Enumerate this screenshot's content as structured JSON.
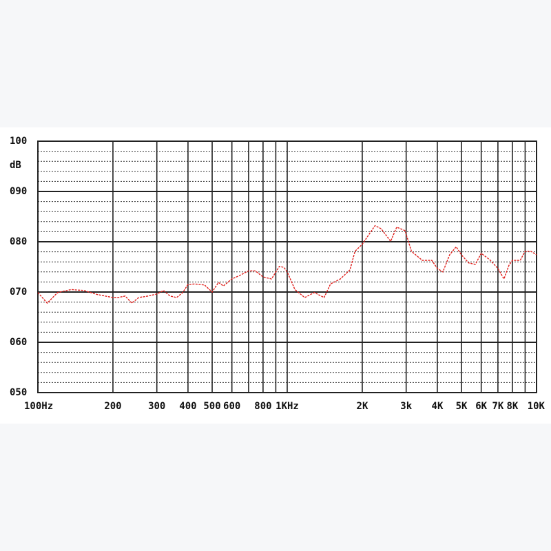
{
  "chart_data": {
    "type": "line",
    "y_label": "dB",
    "xscale": "log",
    "xlim": [
      100,
      10000
    ],
    "ylim": [
      50,
      100
    ],
    "xticks": [
      {
        "value": 100,
        "label": "100Hz"
      },
      200,
      300,
      400,
      500,
      600,
      {
        "value": 700,
        "label": null
      },
      800,
      {
        "value": 900,
        "label": null
      },
      {
        "value": 1000,
        "label": "1KHz"
      },
      {
        "value": 2000,
        "label": "2K"
      },
      {
        "value": 3000,
        "label": "3k"
      },
      {
        "value": 4000,
        "label": "4K"
      },
      {
        "value": 5000,
        "label": "5K"
      },
      {
        "value": 6000,
        "label": "6K"
      },
      {
        "value": 7000,
        "label": "7K"
      },
      {
        "value": 8000,
        "label": "8K"
      },
      {
        "value": 9000,
        "label": null
      },
      {
        "value": 10000,
        "label": "10K"
      }
    ],
    "yticks": [
      {
        "value": 50,
        "label": "050"
      },
      {
        "value": 60,
        "label": "060"
      },
      {
        "value": 70,
        "label": "070"
      },
      {
        "value": 80,
        "label": "080"
      },
      {
        "value": 90,
        "label": "090"
      },
      100
    ],
    "yminor": [
      52,
      54,
      56,
      58,
      62,
      64,
      66,
      68,
      72,
      74,
      76,
      78,
      82,
      84,
      86,
      88,
      92,
      94,
      96,
      98
    ],
    "grid": true,
    "series": [
      {
        "color": "#e0201c",
        "x": [
          100,
          109,
          120,
          136,
          153,
          173,
          200,
          210,
          224,
          238,
          254,
          277,
          300,
          319,
          339,
          360,
          381,
          400,
          426,
          466,
          500,
          530,
          555,
          600,
          645,
          700,
          745,
          800,
          865,
          930,
          970,
          1000,
          1074,
          1175,
          1285,
          1405,
          1492,
          1633,
          1785,
          1870,
          2000,
          2130,
          2250,
          2380,
          2600,
          2750,
          2970,
          3150,
          3480,
          3800,
          4000,
          4210,
          4480,
          4760,
          5000,
          5340,
          5680,
          6000,
          6500,
          7000,
          7400,
          7750,
          8000,
          8250,
          8600,
          9000,
          9500,
          10000
        ],
        "values": [
          69.9,
          67.8,
          69.9,
          70.5,
          70.3,
          69.5,
          68.9,
          68.9,
          69.2,
          67.8,
          68.9,
          69.2,
          69.6,
          70.3,
          69.2,
          68.9,
          69.9,
          71.5,
          71.6,
          71.4,
          70.0,
          71.9,
          71.2,
          72.6,
          73.3,
          74.2,
          74.2,
          73.0,
          72.6,
          75.1,
          74.9,
          74.0,
          70.5,
          68.9,
          69.9,
          68.9,
          71.6,
          72.6,
          74.4,
          78.1,
          79.5,
          81.5,
          83.2,
          82.6,
          80.1,
          82.9,
          82.2,
          78.1,
          76.3,
          76.3,
          74.7,
          74.0,
          77.4,
          79.0,
          77.4,
          75.8,
          75.5,
          77.7,
          76.4,
          74.7,
          72.6,
          75.3,
          76.3,
          76.3,
          76.3,
          78.1,
          78.1,
          77.4
        ]
      }
    ]
  }
}
